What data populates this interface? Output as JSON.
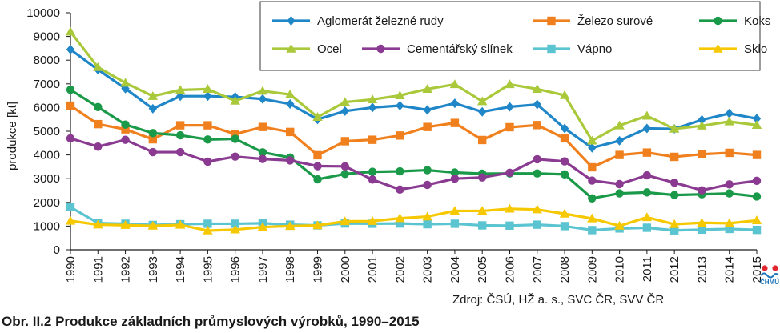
{
  "chart_data": {
    "type": "line",
    "xlabel": "",
    "ylabel": "produkce [kt]",
    "ylim": [
      0,
      10000
    ],
    "yticks": [
      0,
      1000,
      2000,
      3000,
      4000,
      5000,
      6000,
      7000,
      8000,
      9000,
      10000
    ],
    "categories": [
      "1990",
      "1991",
      "1992",
      "1993",
      "1994",
      "1995",
      "1996",
      "1997",
      "1998",
      "1999",
      "2000",
      "2001",
      "2002",
      "2003",
      "2004",
      "2005",
      "2006",
      "2007",
      "2008",
      "2009",
      "2010",
      "2011",
      "2012",
      "2013",
      "2014",
      "2015"
    ],
    "grid": false,
    "legend_position": "top-right",
    "series": [
      {
        "name": "Aglomerát železné rudy",
        "color": "#1f86c8",
        "marker": "diamond",
        "values": [
          8450,
          7600,
          6800,
          5950,
          6480,
          6480,
          6450,
          6360,
          6150,
          5500,
          5850,
          6000,
          6080,
          5900,
          6180,
          5820,
          6030,
          6130,
          5120,
          4300,
          4600,
          5120,
          5100,
          5480,
          5750,
          5530
        ]
      },
      {
        "name": "Železo surové",
        "color": "#f0801e",
        "marker": "square",
        "values": [
          6080,
          5300,
          5080,
          4660,
          5250,
          5250,
          4880,
          5180,
          4970,
          3990,
          4580,
          4640,
          4820,
          5180,
          5350,
          4630,
          5170,
          5260,
          4700,
          3480,
          4000,
          4100,
          3920,
          4030,
          4090,
          4000
        ]
      },
      {
        "name": "Koks",
        "color": "#1a9a49",
        "marker": "circle",
        "values": [
          6750,
          6020,
          5280,
          4920,
          4830,
          4650,
          4680,
          4110,
          3890,
          2970,
          3200,
          3290,
          3310,
          3360,
          3260,
          3210,
          3220,
          3220,
          3180,
          2170,
          2380,
          2420,
          2310,
          2340,
          2380,
          2250
        ]
      },
      {
        "name": "Ocel",
        "color": "#a9c93a",
        "marker": "triangle",
        "values": [
          9200,
          7700,
          7040,
          6480,
          6740,
          6780,
          6280,
          6700,
          6550,
          5600,
          6230,
          6340,
          6510,
          6780,
          6980,
          6260,
          6980,
          6780,
          6520,
          4600,
          5240,
          5650,
          5100,
          5230,
          5410,
          5260
        ]
      },
      {
        "name": "Cementářský slínek",
        "color": "#8a3b91",
        "marker": "circle",
        "values": [
          4700,
          4350,
          4640,
          4120,
          4120,
          3720,
          3930,
          3830,
          3770,
          3530,
          3520,
          2960,
          2540,
          2740,
          3000,
          3050,
          3250,
          3820,
          3730,
          2920,
          2770,
          3140,
          2830,
          2510,
          2760,
          2910
        ]
      },
      {
        "name": "Vápno",
        "color": "#5bc4d1",
        "marker": "square",
        "values": [
          1800,
          1130,
          1100,
          1050,
          1080,
          1100,
          1100,
          1120,
          1060,
          1030,
          1110,
          1100,
          1110,
          1080,
          1100,
          1030,
          1020,
          1060,
          1000,
          830,
          900,
          930,
          820,
          850,
          880,
          840
        ]
      },
      {
        "name": "Sklo",
        "color": "#f5c800",
        "marker": "triangle",
        "values": [
          1220,
          1060,
          1040,
          1010,
          1050,
          810,
          850,
          960,
          1000,
          1030,
          1200,
          1210,
          1330,
          1400,
          1640,
          1640,
          1730,
          1700,
          1520,
          1320,
          1010,
          1370,
          1080,
          1140,
          1120,
          1240
        ]
      }
    ]
  },
  "source": "Zdroj: ČSÚ, HŽ a. s., SVC ČR, SVV ČR",
  "caption": "Obr. II.2  Produkce základních průmyslových výrobků, 1990–2015",
  "logo_text": "ČHMÚ",
  "colors": {
    "axis": "#1a1a1a",
    "legend_border": "#3a3a3a",
    "logo_red": "#e3262e",
    "logo_blue": "#1b75bb"
  }
}
